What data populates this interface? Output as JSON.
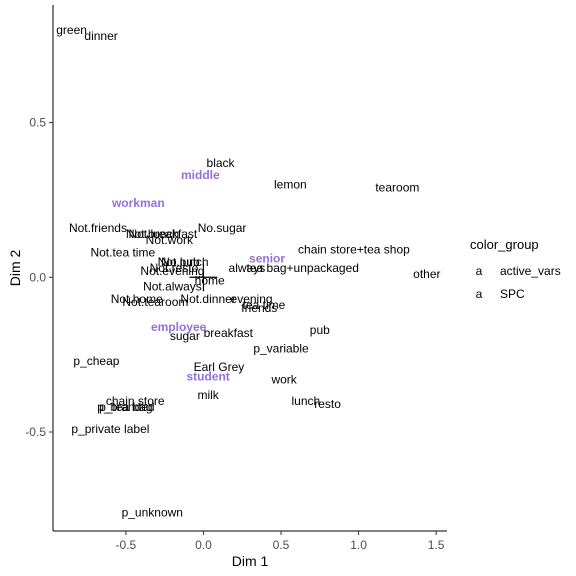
{
  "chart_data": {
    "type": "scatter",
    "xlabel": "Dim 1",
    "ylabel": "Dim 2",
    "xlim": [
      -0.97,
      1.57
    ],
    "ylim": [
      -0.82,
      0.88
    ],
    "xticks": [
      -0.5,
      0.0,
      0.5,
      1.0,
      1.5
    ],
    "xtick_labels": [
      "-0.5",
      "0.0",
      "0.5",
      "1.0",
      "1.5"
    ],
    "yticks": [
      0.5,
      0.0,
      -0.5
    ],
    "ytick_labels": [
      "0.5",
      "0.0",
      "-0.5"
    ],
    "grid": false,
    "legend": {
      "title": "color_group",
      "position": "right",
      "entries": [
        {
          "symbol": "a",
          "label": "active_vars",
          "color": "#000000"
        },
        {
          "symbol": "a",
          "label": "SPC",
          "color": "#9370db"
        }
      ]
    },
    "series": [
      {
        "name": "active_vars",
        "color": "#000000",
        "points": [
          {
            "label": "green",
            "x": -0.85,
            "y": 0.8
          },
          {
            "label": "dinner",
            "x": -0.66,
            "y": 0.78
          },
          {
            "label": "black",
            "x": 0.11,
            "y": 0.37
          },
          {
            "label": "lemon",
            "x": 0.56,
            "y": 0.3
          },
          {
            "label": "tearoom",
            "x": 1.25,
            "y": 0.29
          },
          {
            "label": "Not.friends",
            "x": -0.68,
            "y": 0.16
          },
          {
            "label": "Not.breakfast",
            "x": -0.27,
            "y": 0.14
          },
          {
            "label": "No.sugar",
            "x": 0.12,
            "y": 0.16
          },
          {
            "label": "Not.lunch",
            "x": -0.32,
            "y": 0.14
          },
          {
            "label": "Not.work",
            "x": -0.22,
            "y": 0.12
          },
          {
            "label": "Not.tea time",
            "x": -0.52,
            "y": 0.08
          },
          {
            "label": "chain store+tea shop",
            "x": 0.97,
            "y": 0.09
          },
          {
            "label": "Not.pub",
            "x": -0.16,
            "y": 0.05
          },
          {
            "label": "No.lunch",
            "x": -0.12,
            "y": 0.05
          },
          {
            "label": "Not.resto",
            "x": -0.19,
            "y": 0.03
          },
          {
            "label": "always",
            "x": 0.28,
            "y": 0.03
          },
          {
            "label": "tea bag+unpackaged",
            "x": 0.64,
            "y": 0.03
          },
          {
            "label": "Not.evening",
            "x": -0.2,
            "y": 0.02
          },
          {
            "label": "home",
            "x": 0.04,
            "y": -0.01
          },
          {
            "label": "other",
            "x": 1.44,
            "y": 0.01
          },
          {
            "label": "Not.always",
            "x": -0.2,
            "y": -0.03
          },
          {
            "label": "Not.home",
            "x": -0.43,
            "y": -0.07
          },
          {
            "label": "Not.dinner",
            "x": 0.03,
            "y": -0.07
          },
          {
            "label": "evening",
            "x": 0.31,
            "y": -0.07
          },
          {
            "label": "Not.tearoom",
            "x": -0.31,
            "y": -0.08
          },
          {
            "label": "tea time",
            "x": 0.39,
            "y": -0.09
          },
          {
            "label": "friends",
            "x": 0.36,
            "y": -0.1
          },
          {
            "label": "pub",
            "x": 0.75,
            "y": -0.17
          },
          {
            "label": "breakfast",
            "x": 0.16,
            "y": -0.18
          },
          {
            "label": "sugar",
            "x": -0.12,
            "y": -0.19
          },
          {
            "label": "p_variable",
            "x": 0.5,
            "y": -0.23
          },
          {
            "label": "p_cheap",
            "x": -0.69,
            "y": -0.27
          },
          {
            "label": "Earl Grey",
            "x": 0.1,
            "y": -0.29
          },
          {
            "label": "work",
            "x": 0.52,
            "y": -0.33
          },
          {
            "label": "milk",
            "x": 0.03,
            "y": -0.38
          },
          {
            "label": "lunch",
            "x": 0.66,
            "y": -0.4
          },
          {
            "label": "resto",
            "x": 0.8,
            "y": -0.41
          },
          {
            "label": "chain store",
            "x": -0.44,
            "y": -0.4
          },
          {
            "label": "p_branded",
            "x": -0.5,
            "y": -0.42
          },
          {
            "label": "p_tea bag",
            "x": -0.5,
            "y": -0.42
          },
          {
            "label": "p_private label",
            "x": -0.6,
            "y": -0.49
          },
          {
            "label": "p_unknown",
            "x": -0.33,
            "y": -0.76
          }
        ]
      },
      {
        "name": "SPC",
        "color": "#9370db",
        "points": [
          {
            "label": "middle",
            "x": -0.02,
            "y": 0.33
          },
          {
            "label": "workman",
            "x": -0.42,
            "y": 0.24
          },
          {
            "label": "senior",
            "x": 0.41,
            "y": 0.06
          },
          {
            "label": "employee",
            "x": -0.16,
            "y": -0.16
          },
          {
            "label": "student",
            "x": 0.03,
            "y": -0.32
          }
        ]
      }
    ]
  }
}
